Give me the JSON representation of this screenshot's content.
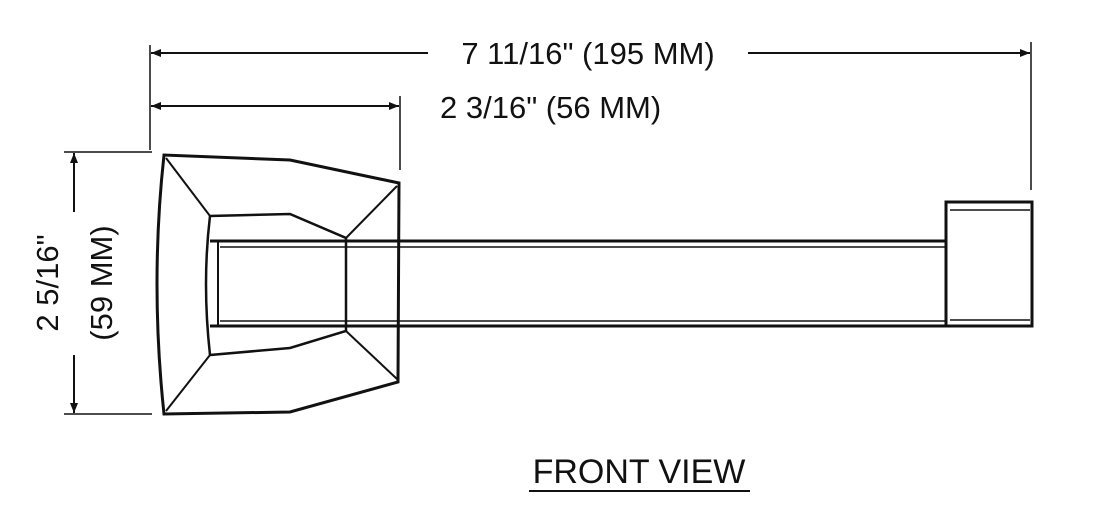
{
  "dimensions": {
    "overall_width": "7 11/16\" (195 MM)",
    "base_width": "2 3/16\" (56 MM)",
    "height_imperial": "2 5/16\"",
    "height_metric": "(59 MM)"
  },
  "view_label": "FRONT VIEW",
  "colors": {
    "line": "#111111",
    "background": "#ffffff"
  }
}
